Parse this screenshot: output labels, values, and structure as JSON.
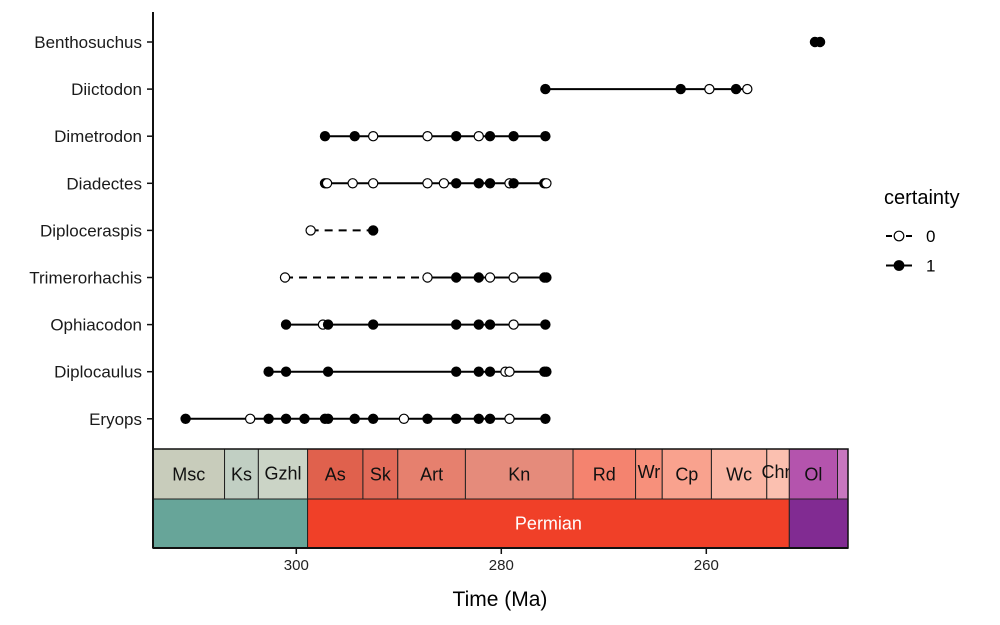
{
  "chart_data": {
    "type": "scatter",
    "xlabel": "Time (Ma)",
    "x_ticks": [
      300,
      280,
      260
    ],
    "xlim": [
      314,
      246
    ],
    "x_reversed": true,
    "taxa": [
      {
        "name": "Benthosuchus",
        "lines": [],
        "points": [
          {
            "x": 249.4,
            "c": 1
          },
          {
            "x": 248.9,
            "c": 1
          }
        ]
      },
      {
        "name": "Diictodon",
        "lines": [
          {
            "from": 275.7,
            "to": 256.0,
            "style": "solid"
          }
        ],
        "points": [
          {
            "x": 275.7,
            "c": 1
          },
          {
            "x": 262.5,
            "c": 1
          },
          {
            "x": 259.7,
            "c": 0
          },
          {
            "x": 257.1,
            "c": 1
          },
          {
            "x": 256.0,
            "c": 0
          }
        ]
      },
      {
        "name": "Dimetrodon",
        "lines": [
          {
            "from": 297.2,
            "to": 275.7,
            "style": "solid"
          }
        ],
        "points": [
          {
            "x": 297.2,
            "c": 1
          },
          {
            "x": 294.3,
            "c": 1
          },
          {
            "x": 292.5,
            "c": 0
          },
          {
            "x": 287.2,
            "c": 0
          },
          {
            "x": 284.4,
            "c": 1
          },
          {
            "x": 282.2,
            "c": 0
          },
          {
            "x": 281.1,
            "c": 1
          },
          {
            "x": 278.8,
            "c": 1
          },
          {
            "x": 275.7,
            "c": 1
          }
        ]
      },
      {
        "name": "Diadectes",
        "lines": [
          {
            "from": 297.2,
            "to": 275.6,
            "style": "solid"
          }
        ],
        "points": [
          {
            "x": 297.2,
            "c": 1
          },
          {
            "x": 297.0,
            "c": 0
          },
          {
            "x": 294.5,
            "c": 0
          },
          {
            "x": 292.5,
            "c": 0
          },
          {
            "x": 287.2,
            "c": 0
          },
          {
            "x": 285.6,
            "c": 0
          },
          {
            "x": 284.4,
            "c": 1
          },
          {
            "x": 282.2,
            "c": 1
          },
          {
            "x": 281.1,
            "c": 1
          },
          {
            "x": 279.2,
            "c": 0
          },
          {
            "x": 278.8,
            "c": 1
          },
          {
            "x": 275.8,
            "c": 1
          },
          {
            "x": 275.6,
            "c": 0
          }
        ]
      },
      {
        "name": "Diploceraspis",
        "lines": [
          {
            "from": 298.6,
            "to": 292.5,
            "style": "dashed"
          }
        ],
        "points": [
          {
            "x": 298.6,
            "c": 0
          },
          {
            "x": 292.5,
            "c": 1
          }
        ]
      },
      {
        "name": "Trimerorhachis",
        "lines": [
          {
            "from": 301.1,
            "to": 287.2,
            "style": "dashed"
          },
          {
            "from": 287.2,
            "to": 275.6,
            "style": "solid"
          }
        ],
        "points": [
          {
            "x": 301.1,
            "c": 0
          },
          {
            "x": 287.2,
            "c": 0
          },
          {
            "x": 284.4,
            "c": 1
          },
          {
            "x": 282.2,
            "c": 1
          },
          {
            "x": 281.1,
            "c": 0
          },
          {
            "x": 278.8,
            "c": 0
          },
          {
            "x": 275.8,
            "c": 1
          },
          {
            "x": 275.6,
            "c": 1
          }
        ]
      },
      {
        "name": "Ophiacodon",
        "lines": [
          {
            "from": 301.0,
            "to": 275.7,
            "style": "solid"
          }
        ],
        "points": [
          {
            "x": 301.0,
            "c": 1
          },
          {
            "x": 297.4,
            "c": 0
          },
          {
            "x": 296.9,
            "c": 1
          },
          {
            "x": 292.5,
            "c": 1
          },
          {
            "x": 284.4,
            "c": 1
          },
          {
            "x": 282.2,
            "c": 1
          },
          {
            "x": 281.1,
            "c": 1
          },
          {
            "x": 278.8,
            "c": 0
          },
          {
            "x": 275.7,
            "c": 1
          }
        ]
      },
      {
        "name": "Diplocaulus",
        "lines": [
          {
            "from": 302.7,
            "to": 275.6,
            "style": "solid"
          }
        ],
        "points": [
          {
            "x": 302.7,
            "c": 1
          },
          {
            "x": 301.0,
            "c": 1
          },
          {
            "x": 296.9,
            "c": 1
          },
          {
            "x": 284.4,
            "c": 1
          },
          {
            "x": 282.2,
            "c": 1
          },
          {
            "x": 281.1,
            "c": 1
          },
          {
            "x": 279.6,
            "c": 0
          },
          {
            "x": 279.2,
            "c": 0
          },
          {
            "x": 275.8,
            "c": 1
          },
          {
            "x": 275.6,
            "c": 1
          }
        ]
      },
      {
        "name": "Eryops",
        "lines": [
          {
            "from": 310.8,
            "to": 275.7,
            "style": "solid"
          }
        ],
        "points": [
          {
            "x": 310.8,
            "c": 1
          },
          {
            "x": 304.5,
            "c": 0
          },
          {
            "x": 302.7,
            "c": 1
          },
          {
            "x": 301.0,
            "c": 1
          },
          {
            "x": 299.2,
            "c": 1
          },
          {
            "x": 297.2,
            "c": 1
          },
          {
            "x": 296.9,
            "c": 1
          },
          {
            "x": 294.3,
            "c": 1
          },
          {
            "x": 292.5,
            "c": 1
          },
          {
            "x": 289.5,
            "c": 0
          },
          {
            "x": 287.2,
            "c": 1
          },
          {
            "x": 284.4,
            "c": 1
          },
          {
            "x": 282.2,
            "c": 1
          },
          {
            "x": 281.1,
            "c": 1
          },
          {
            "x": 279.2,
            "c": 0
          },
          {
            "x": 275.7,
            "c": 1
          }
        ]
      }
    ],
    "legend": {
      "title": "certainty",
      "placement": "right",
      "entries": [
        {
          "label": "0",
          "filled": false
        },
        {
          "label": "1",
          "filled": true
        }
      ]
    },
    "timescale": {
      "stages": [
        {
          "label": "Msc",
          "from": 315.2,
          "to": 307.0,
          "color": "#c8ccbb"
        },
        {
          "label": "Ks",
          "from": 307.0,
          "to": 303.7,
          "color": "#c1cfc3"
        },
        {
          "label": "Gzhl",
          "from": 303.7,
          "to": 298.9,
          "color": "#cbd4c6"
        },
        {
          "label": "As",
          "from": 298.9,
          "to": 293.5,
          "color": "#e0614d"
        },
        {
          "label": "Sk",
          "from": 293.5,
          "to": 290.1,
          "color": "#e26a58"
        },
        {
          "label": "Art",
          "from": 290.1,
          "to": 283.5,
          "color": "#e6806e"
        },
        {
          "label": "Kn",
          "from": 283.5,
          "to": 273.0,
          "color": "#e58b7b"
        },
        {
          "label": "Rd",
          "from": 273.0,
          "to": 266.9,
          "color": "#f4836f"
        },
        {
          "label": "Wr",
          "from": 266.9,
          "to": 264.3,
          "color": "#f7907b"
        },
        {
          "label": "Cp",
          "from": 264.3,
          "to": 259.5,
          "color": "#f9a28e"
        },
        {
          "label": "Wc",
          "from": 259.5,
          "to": 254.1,
          "color": "#fab5a3"
        },
        {
          "label": "Chn",
          "from": 254.1,
          "to": 251.9,
          "color": "#fbc0b0"
        },
        {
          "label": "Ol",
          "from": 251.9,
          "to": 247.2,
          "color": "#b454ad"
        },
        {
          "label": "",
          "from": 247.2,
          "to": 242.0,
          "color": "#c877bf"
        }
      ],
      "periods": [
        {
          "label": "",
          "from": 315.2,
          "to": 298.9,
          "color": "#67a599"
        },
        {
          "label": "Permian",
          "from": 298.9,
          "to": 251.9,
          "color": "#f04028"
        },
        {
          "label": "",
          "from": 251.9,
          "to": 242.0,
          "color": "#812b92"
        }
      ]
    }
  }
}
